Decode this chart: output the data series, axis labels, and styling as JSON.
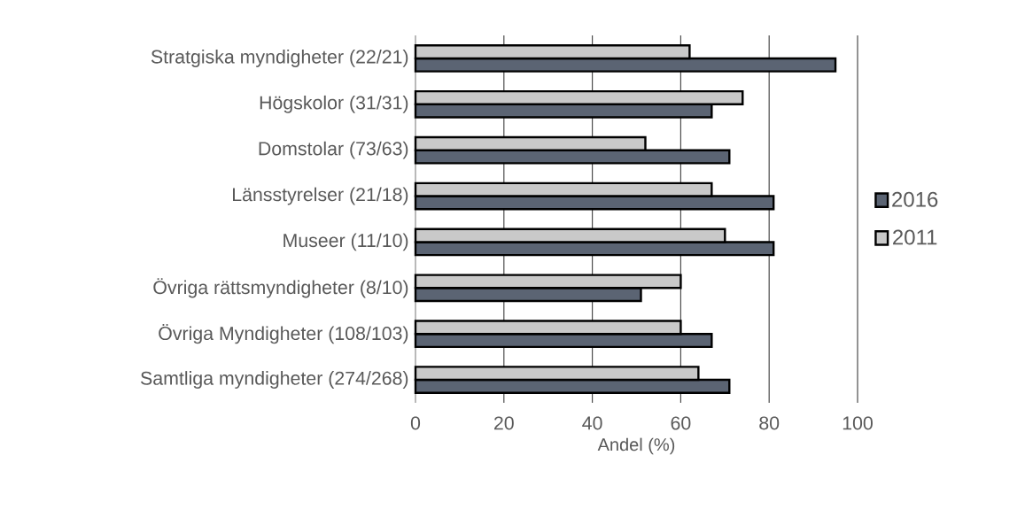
{
  "chart_data": {
    "type": "bar",
    "orientation": "horizontal",
    "xlabel": "Andel (%)",
    "categories": [
      "Stratgiska myndigheter (22/21)",
      "Högskolor (31/31)",
      "Domstolar (73/63)",
      "Länsstyrelser (21/18)",
      "Museer (11/10)",
      "Övriga rättsmyndigheter (8/10)",
      "Övriga Myndigheter (108/103)",
      "Samtliga myndigheter (274/268)"
    ],
    "series": [
      {
        "name": "2016",
        "color": "#5b6473",
        "values": [
          95,
          67,
          71,
          81,
          81,
          51,
          67,
          71
        ]
      },
      {
        "name": "2011",
        "color": "#c9c9c9",
        "values": [
          62,
          74,
          52,
          67,
          70,
          60,
          60,
          64
        ]
      }
    ],
    "xlim": [
      0,
      100
    ],
    "xticks": [
      0,
      20,
      40,
      60,
      80,
      100
    ],
    "grid": "x",
    "legend": "right"
  }
}
